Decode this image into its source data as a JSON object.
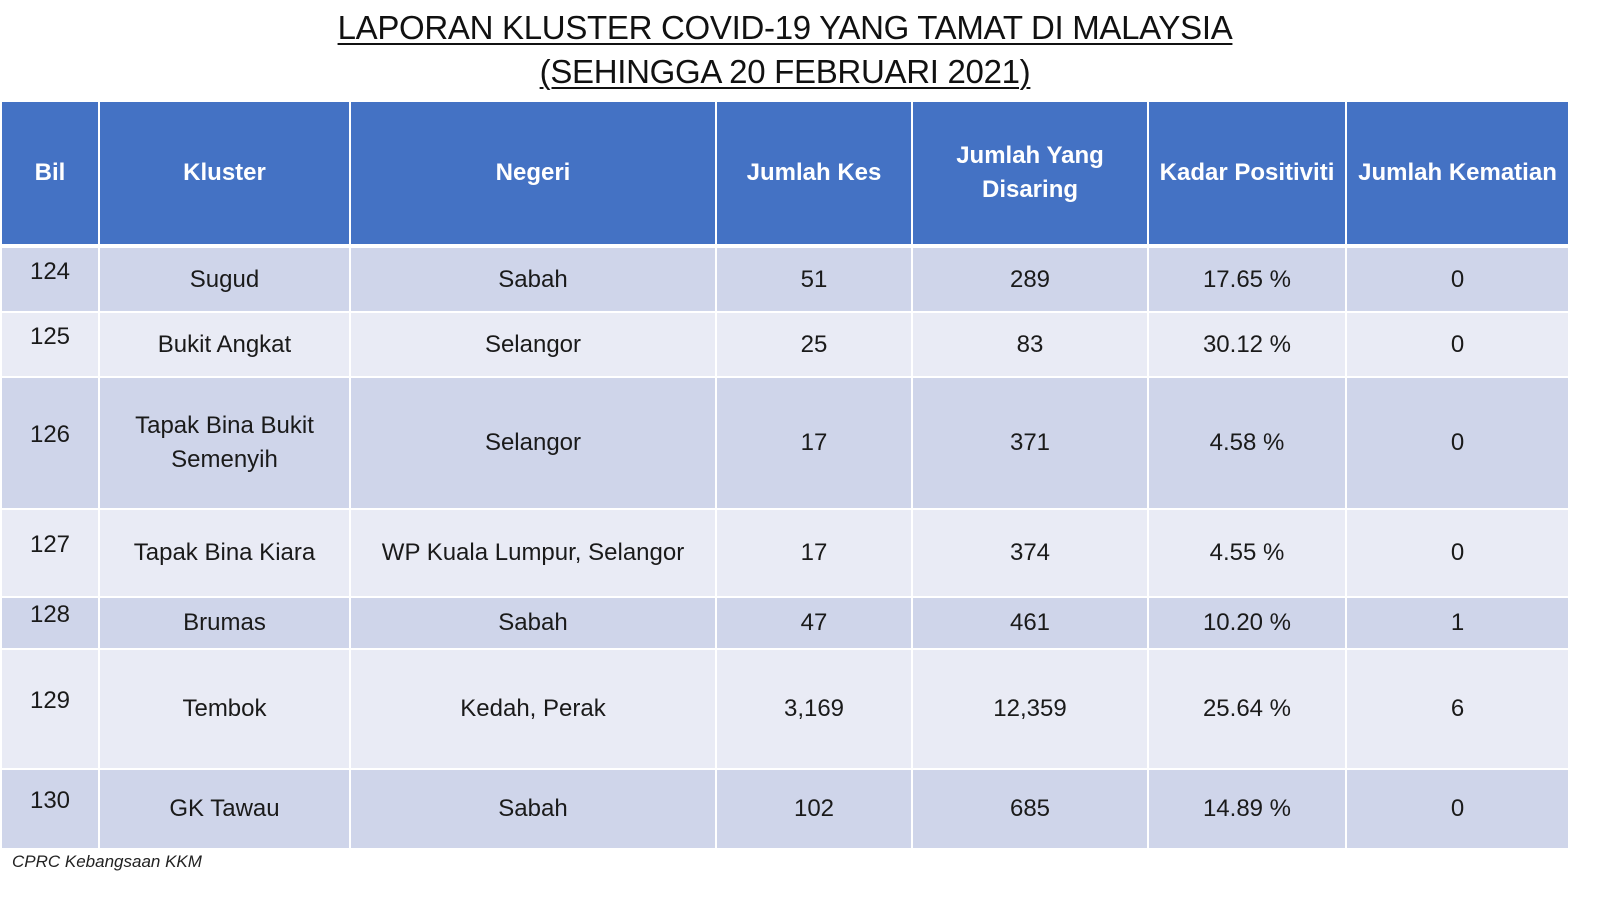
{
  "title": {
    "line1": "LAPORAN KLUSTER COVID-19 YANG TAMAT DI MALAYSIA",
    "line2": "(SEHINGGA  20 FEBRUARI 2021)"
  },
  "table": {
    "headers": [
      "Bil",
      "Kluster",
      "Negeri",
      "Jumlah Kes",
      "Jumlah Yang Disaring",
      "Kadar Positiviti",
      "Jumlah Kematian"
    ],
    "rows": [
      {
        "bil": "124",
        "kluster": "Sugud",
        "negeri": "Sabah",
        "kes": "51",
        "disaring": "289",
        "positiviti": "17.65 %",
        "kematian": "0"
      },
      {
        "bil": "125",
        "kluster": "Bukit Angkat",
        "negeri": "Selangor",
        "kes": "25",
        "disaring": "83",
        "positiviti": "30.12 %",
        "kematian": "0"
      },
      {
        "bil": "126",
        "kluster": "Tapak Bina Bukit Semenyih",
        "negeri": "Selangor",
        "kes": "17",
        "disaring": "371",
        "positiviti": "4.58 %",
        "kematian": "0"
      },
      {
        "bil": "127",
        "kluster": "Tapak Bina Kiara",
        "negeri": "WP Kuala Lumpur, Selangor",
        "kes": "17",
        "disaring": "374",
        "positiviti": "4.55 %",
        "kematian": "0"
      },
      {
        "bil": "128",
        "kluster": "Brumas",
        "negeri": "Sabah",
        "kes": "47",
        "disaring": "461",
        "positiviti": "10.20 %",
        "kematian": "1"
      },
      {
        "bil": "129",
        "kluster": "Tembok",
        "negeri": "Kedah, Perak",
        "kes": "3,169",
        "disaring": "12,359",
        "positiviti": "25.64 %",
        "kematian": "6"
      },
      {
        "bil": "130",
        "kluster": "GK Tawau",
        "negeri": "Sabah",
        "kes": "102",
        "disaring": "685",
        "positiviti": "14.89 %",
        "kematian": "0"
      }
    ]
  },
  "footer": "CPRC Kebangsaan KKM",
  "colors": {
    "header_bg": "#4472c4",
    "row_dark": "#cfd5ea",
    "row_light": "#e9ebf5"
  }
}
